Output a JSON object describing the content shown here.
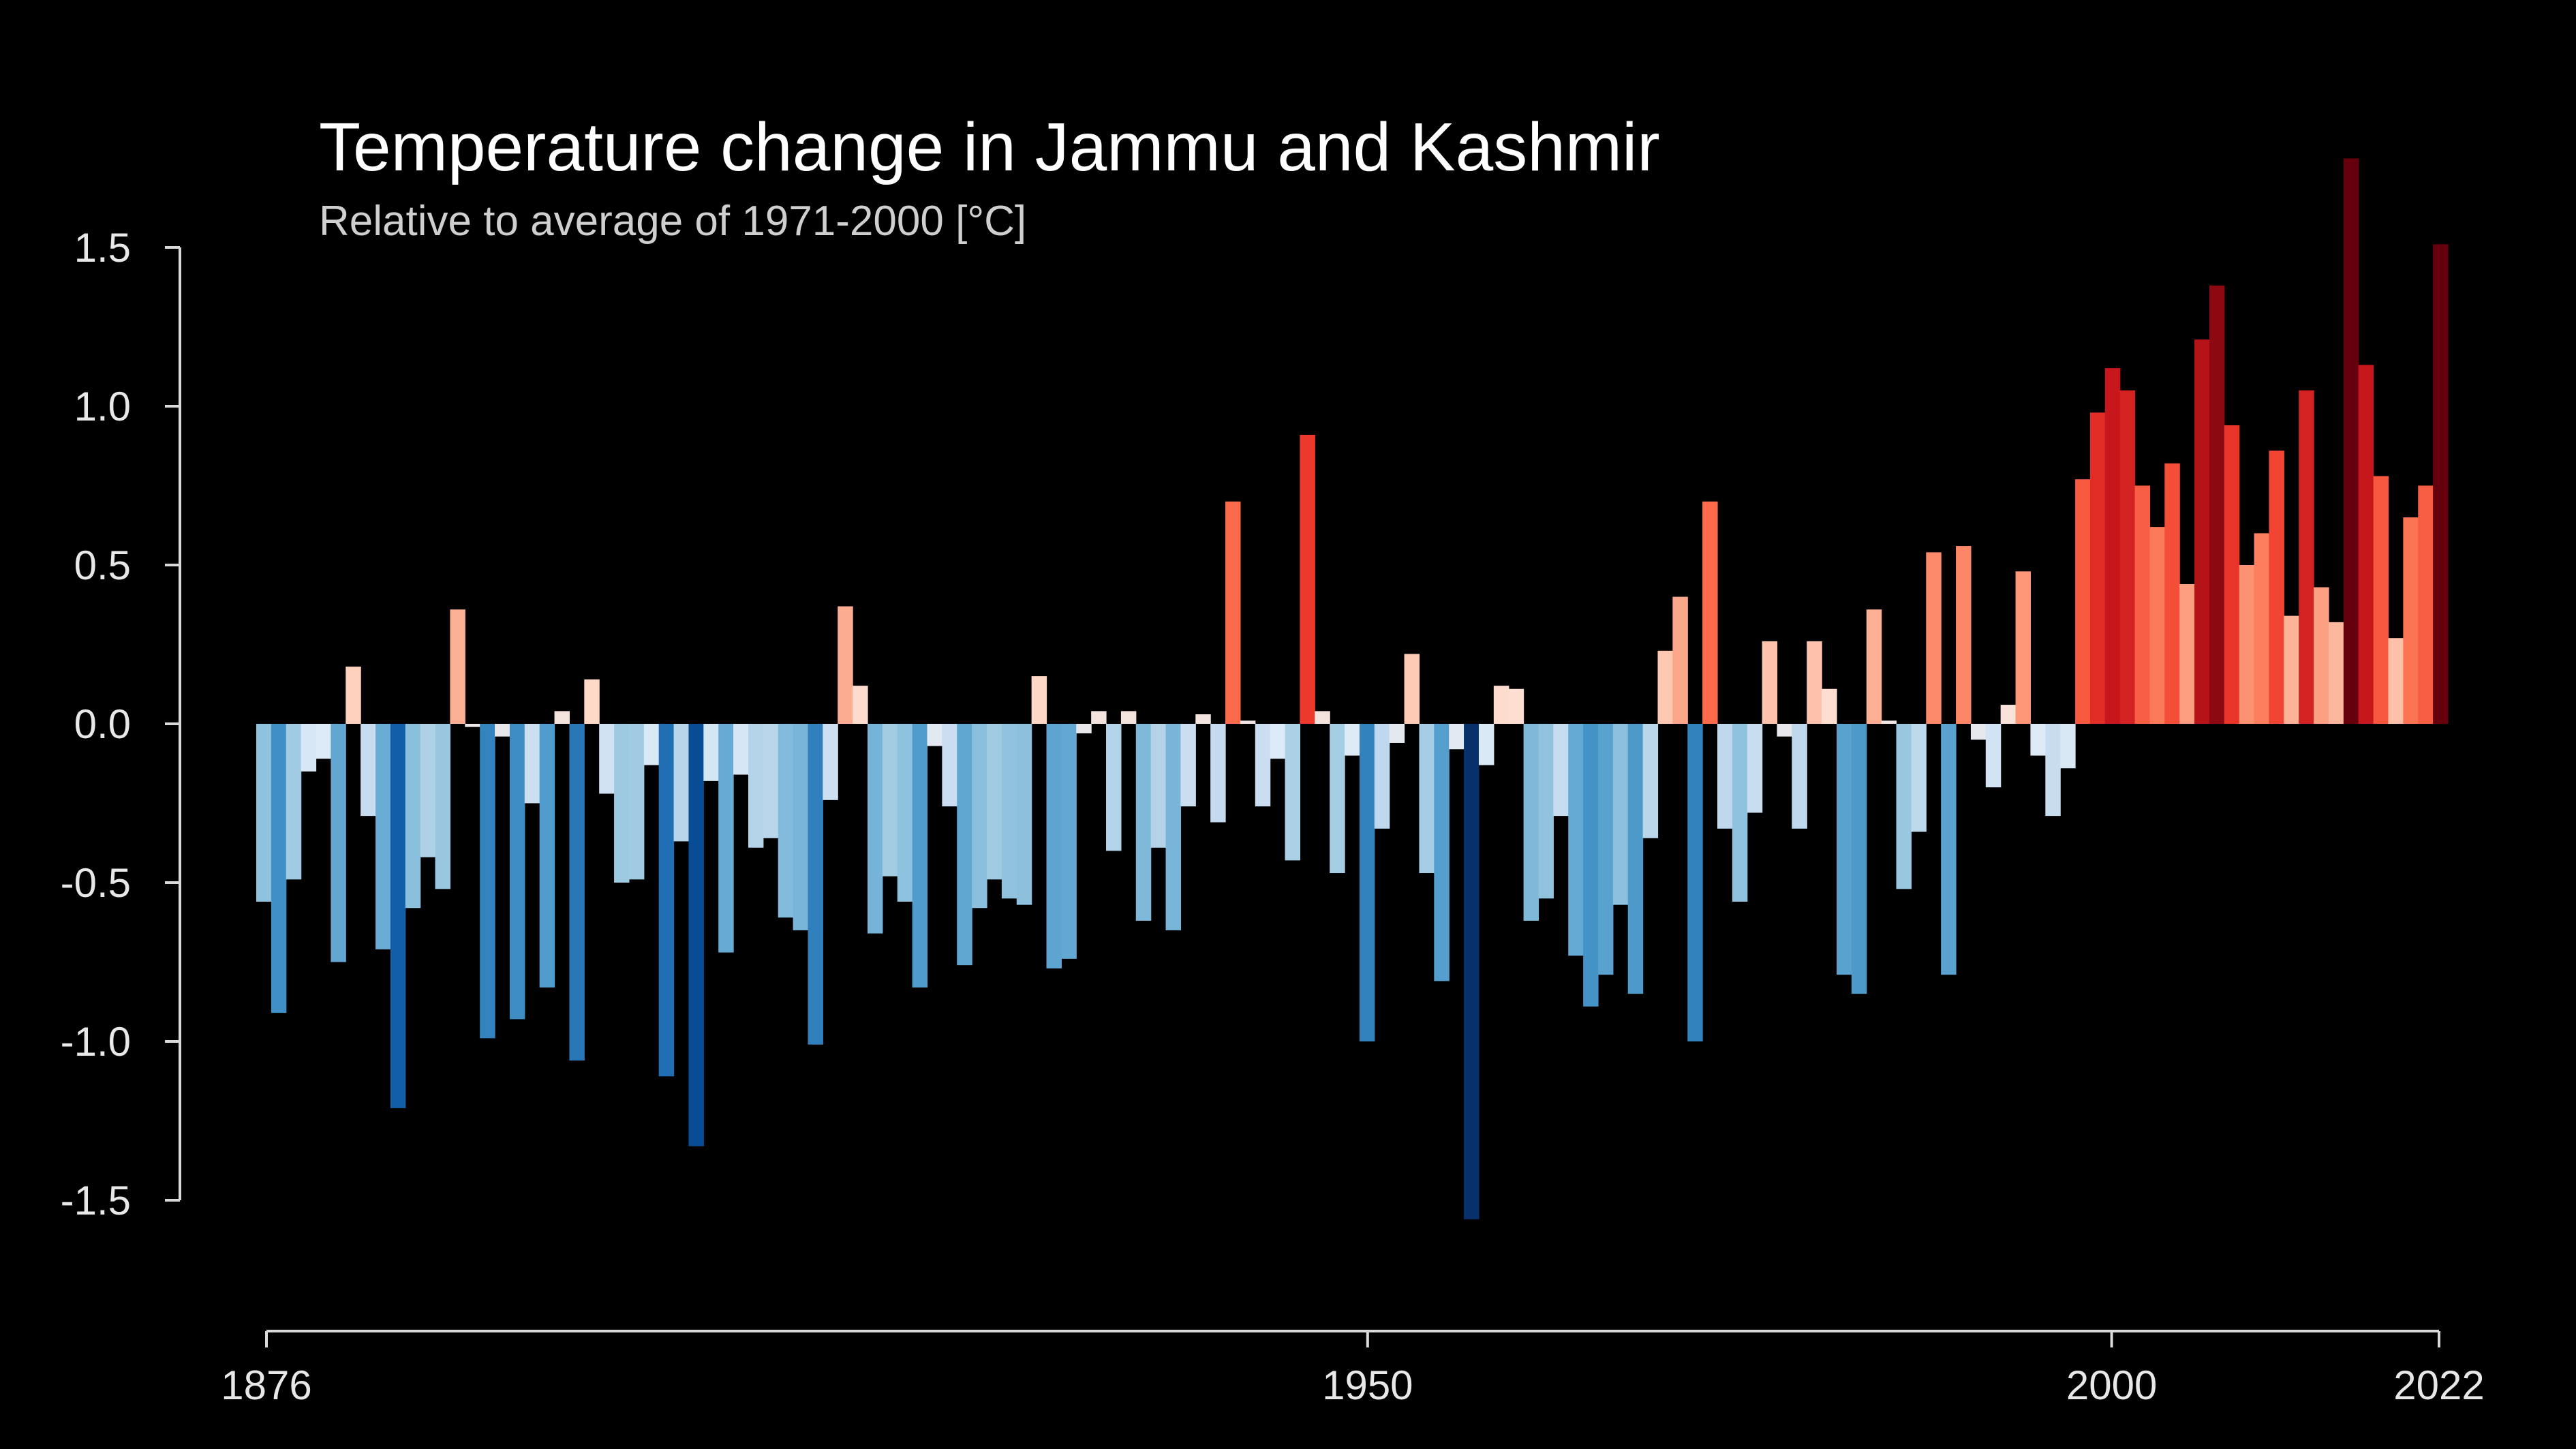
{
  "chart_data": {
    "type": "bar",
    "title": "Temperature change in Jammu and Kashmir",
    "subtitle": "Relative to average of 1971-2000  [°C]",
    "x_start": 1876,
    "x_end": 2022,
    "xticks": [
      1876,
      1950,
      2000,
      2022
    ],
    "yticks": [
      1.5,
      1.0,
      0.5,
      0.0,
      -0.5,
      -1.0,
      -1.5
    ],
    "ytick_labels": [
      "1.5",
      "1.0",
      "0.5",
      "0.0",
      "-0.5",
      "-1.0",
      "-1.5"
    ],
    "ylim": [
      -1.6,
      1.85
    ],
    "grid": false,
    "legend": "none",
    "colormap": [
      "#08306b",
      "#08519c",
      "#2171b5",
      "#4292c6",
      "#6baed6",
      "#9ecae1",
      "#c6dbef",
      "#deebf7",
      "#fee0d2",
      "#fcbba1",
      "#fc9272",
      "#fb6a4a",
      "#ef3b2c",
      "#cb181d",
      "#a50f15",
      "#67000d"
    ],
    "color_range": [
      -1.5,
      1.5
    ],
    "years": [
      1876,
      1877,
      1878,
      1879,
      1880,
      1881,
      1882,
      1883,
      1884,
      1885,
      1886,
      1887,
      1888,
      1889,
      1890,
      1891,
      1892,
      1893,
      1894,
      1895,
      1896,
      1897,
      1898,
      1899,
      1900,
      1901,
      1902,
      1903,
      1904,
      1905,
      1906,
      1907,
      1908,
      1909,
      1910,
      1911,
      1912,
      1913,
      1914,
      1915,
      1916,
      1917,
      1918,
      1919,
      1920,
      1921,
      1922,
      1923,
      1924,
      1925,
      1926,
      1927,
      1928,
      1929,
      1930,
      1931,
      1932,
      1933,
      1934,
      1935,
      1936,
      1937,
      1938,
      1939,
      1940,
      1941,
      1942,
      1943,
      1944,
      1945,
      1946,
      1947,
      1948,
      1949,
      1950,
      1951,
      1952,
      1953,
      1954,
      1955,
      1956,
      1957,
      1958,
      1959,
      1960,
      1961,
      1962,
      1963,
      1964,
      1965,
      1966,
      1967,
      1968,
      1969,
      1970,
      1971,
      1972,
      1973,
      1974,
      1975,
      1976,
      1977,
      1978,
      1979,
      1980,
      1981,
      1982,
      1983,
      1984,
      1985,
      1986,
      1987,
      1988,
      1989,
      1990,
      1991,
      1992,
      1993,
      1994,
      1995,
      1996,
      1997,
      1998,
      1999,
      2000,
      2001,
      2002,
      2003,
      2004,
      2005,
      2006,
      2007,
      2008,
      2009,
      2010,
      2011,
      2012,
      2013,
      2014,
      2015,
      2016,
      2017,
      2018,
      2019,
      2020,
      2021,
      2022
    ],
    "values": [
      -0.56,
      -0.91,
      -0.49,
      -0.15,
      -0.11,
      -0.75,
      0.18,
      -0.29,
      -0.71,
      -1.21,
      -0.58,
      -0.42,
      -0.52,
      0.36,
      -0.01,
      -0.99,
      -0.04,
      -0.93,
      -0.25,
      -0.83,
      0.04,
      -1.06,
      0.14,
      -0.22,
      -0.5,
      -0.49,
      -0.13,
      -1.11,
      -0.37,
      -1.33,
      -0.18,
      -0.72,
      -0.16,
      -0.39,
      -0.36,
      -0.61,
      -0.65,
      -1.01,
      -0.24,
      0.37,
      0.12,
      -0.66,
      -0.48,
      -0.56,
      -0.83,
      -0.07,
      -0.26,
      -0.76,
      -0.58,
      -0.49,
      -0.55,
      -0.57,
      0.15,
      -0.77,
      -0.74,
      -0.03,
      0.04,
      -0.4,
      0.04,
      -0.62,
      -0.39,
      -0.65,
      -0.26,
      0.03,
      -0.31,
      0.7,
      0.01,
      -0.26,
      -0.11,
      -0.43,
      0.91,
      0.04,
      -0.47,
      -0.1,
      -1.0,
      -0.33,
      -0.06,
      0.22,
      -0.47,
      -0.81,
      -0.08,
      -1.56,
      -0.13,
      0.12,
      0.11,
      -0.62,
      -0.55,
      -0.29,
      -0.73,
      -0.89,
      -0.79,
      -0.57,
      -0.85,
      -0.36,
      0.23,
      0.4,
      -1.0,
      0.7,
      -0.33,
      -0.56,
      -0.28,
      0.26,
      -0.04,
      -0.33,
      0.26,
      0.11,
      -0.79,
      -0.85,
      0.36,
      0.01,
      -0.52,
      -0.34,
      0.54,
      -0.79,
      0.56,
      -0.05,
      -0.2,
      0.06,
      0.48,
      -0.1,
      -0.29,
      -0.14,
      0.77,
      0.98,
      1.12,
      1.05,
      0.75,
      0.62,
      0.82,
      0.44,
      1.21,
      1.38,
      0.94,
      0.5,
      0.6,
      0.86,
      0.34,
      1.05,
      0.43,
      0.32,
      1.78,
      1.13,
      0.78,
      0.27,
      0.65,
      0.75,
      1.51
    ]
  }
}
